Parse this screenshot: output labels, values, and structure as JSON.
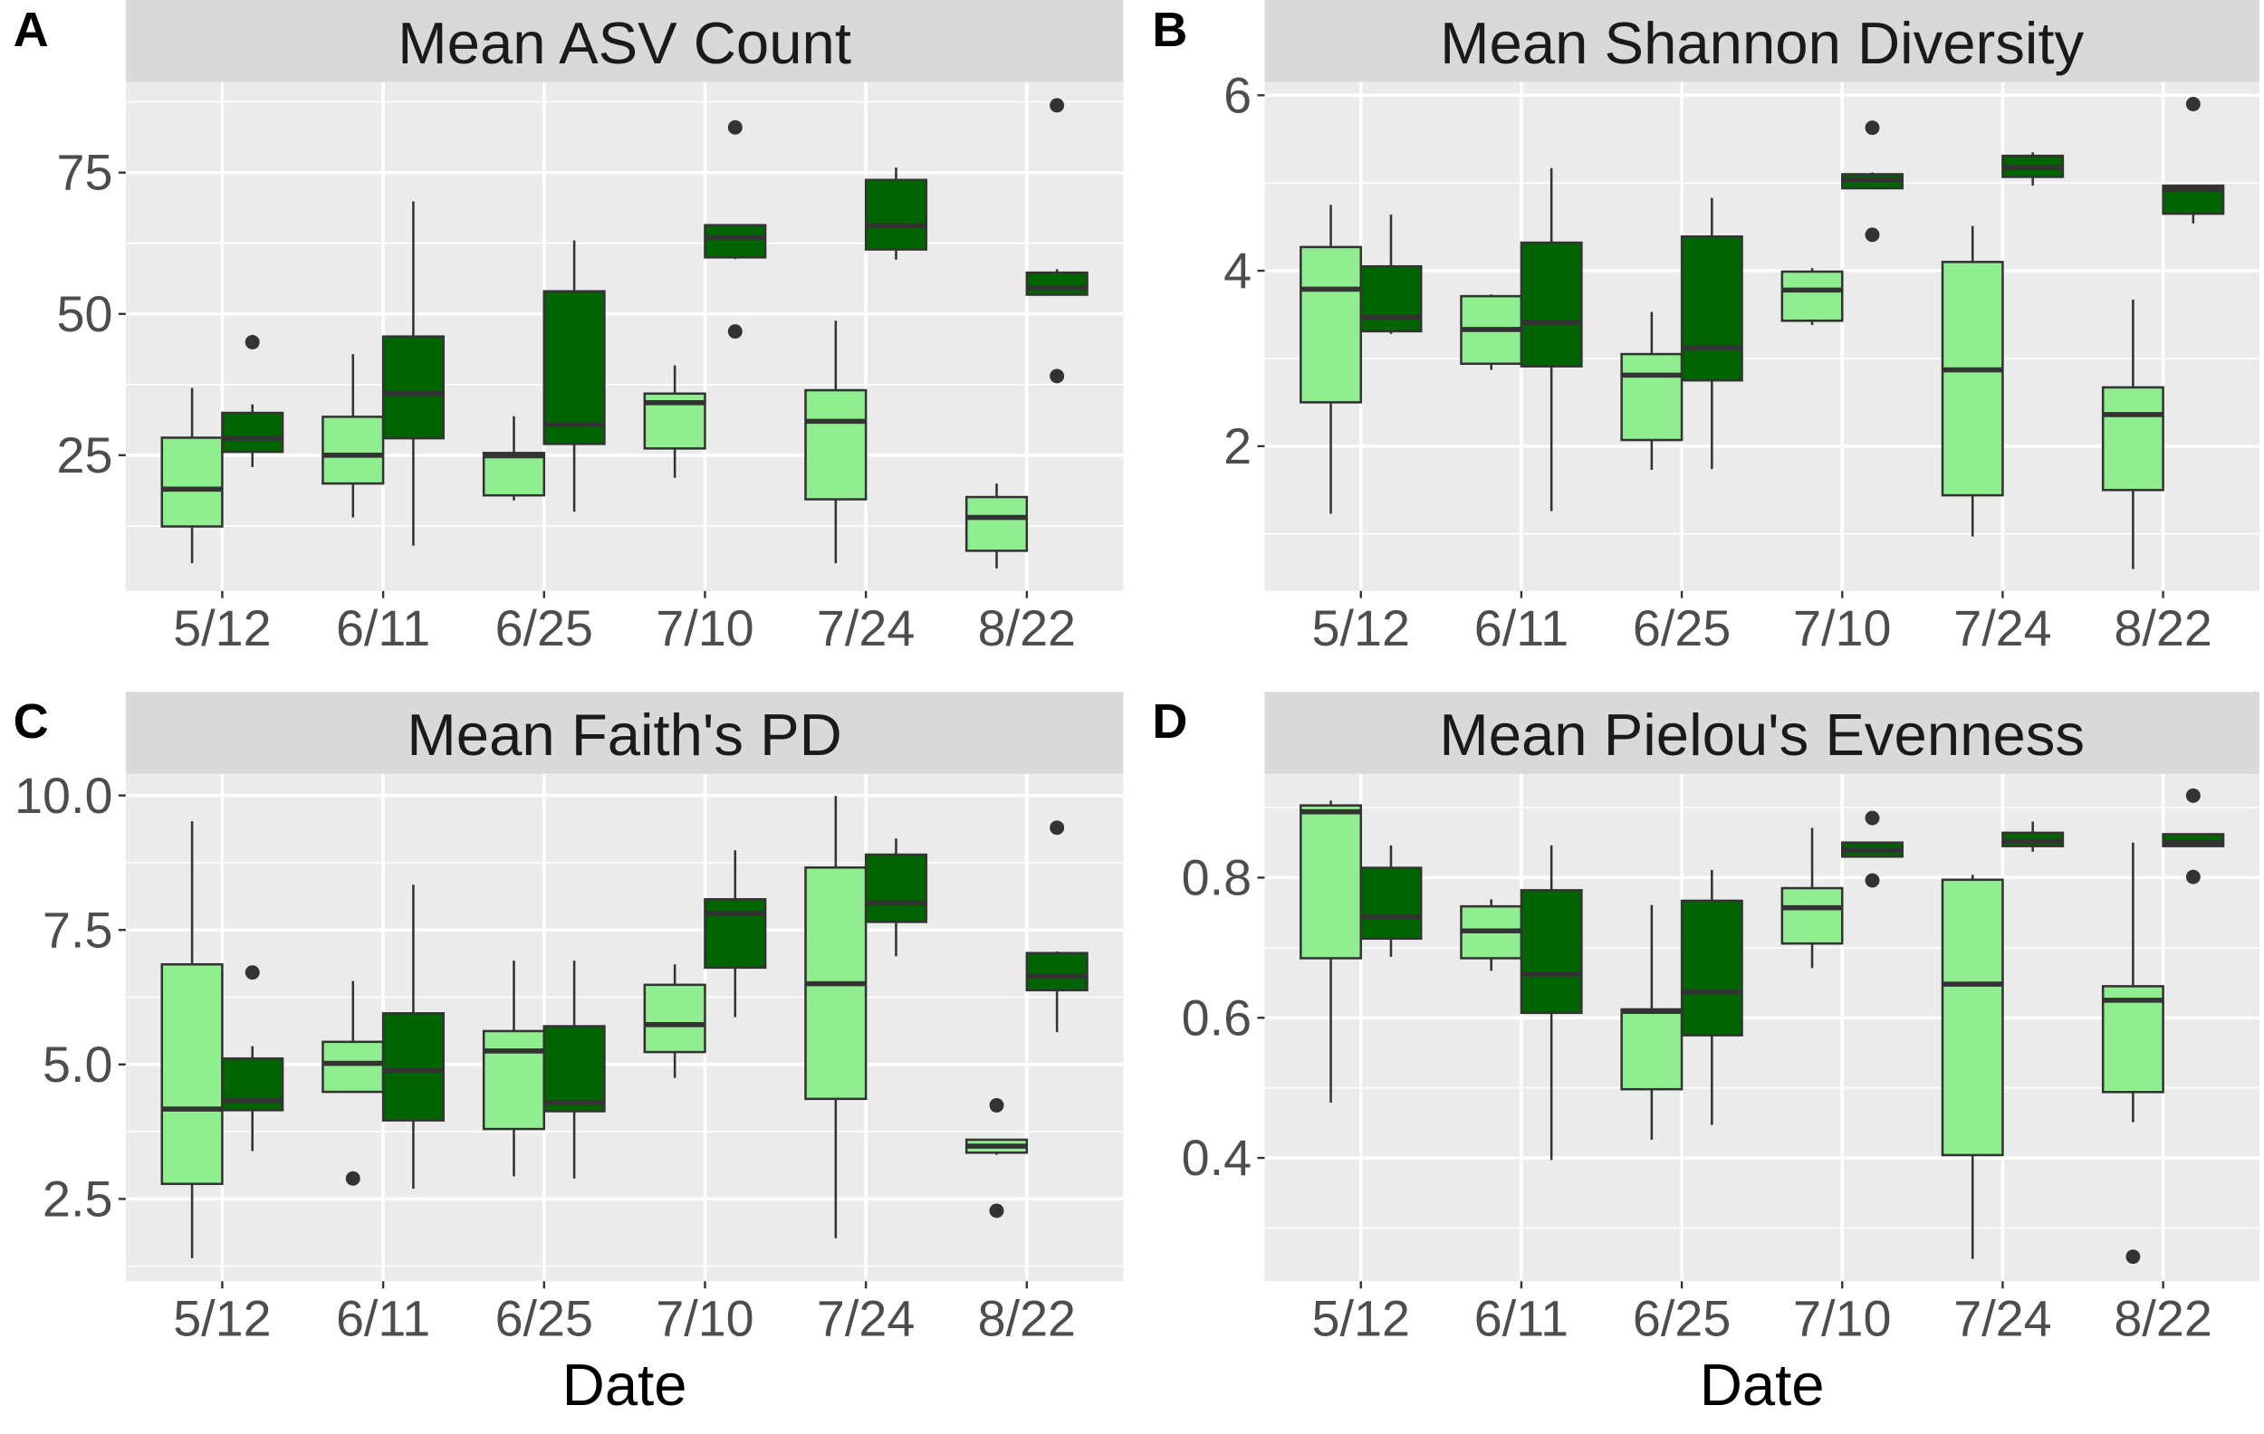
{
  "colors": {
    "light": "#90EE90",
    "dark": "#006400",
    "panel_bg": "#EBEBEB",
    "strip_bg": "#D9D9D9",
    "outline": "#333333"
  },
  "chart_data": [
    {
      "type": "box",
      "panel_letter": "A",
      "title": "Mean ASV Count",
      "xlabel": "",
      "categories": [
        "5/12",
        "6/11",
        "6/25",
        "7/10",
        "7/24",
        "8/22"
      ],
      "ylim": [
        1,
        91
      ],
      "yticks": [
        25,
        50,
        75
      ],
      "ytick_labels": [
        "25",
        "50",
        "75"
      ],
      "minor_ticks": [
        12.5,
        37.5,
        62.5,
        87.5
      ],
      "series": [
        {
          "fill": "light",
          "stats": [
            [
              5.9,
              12.4,
              19,
              28.1,
              36.9
            ],
            [
              14,
              20,
              25,
              31.8,
              42.9
            ],
            [
              17,
              17.9,
              24.9,
              25.4,
              31.9
            ],
            [
              21,
              26.2,
              34.3,
              35.9,
              40.9
            ],
            [
              5.9,
              17.2,
              31,
              36.5,
              48.8
            ],
            [
              5,
              8.1,
              14,
              17.6,
              20
            ]
          ],
          "outliers": [
            [],
            [],
            [],
            [],
            [],
            []
          ]
        },
        {
          "fill": "dark",
          "stats": [
            [
              22.9,
              25.6,
              28,
              32.5,
              34
            ],
            [
              9,
              28,
              35.9,
              46,
              69.9
            ],
            [
              15,
              27,
              30.4,
              54,
              63
            ],
            [
              59.7,
              60,
              63.5,
              65.7,
              65.7
            ],
            [
              59.6,
              61.4,
              65.6,
              73.7,
              75.9
            ],
            [
              53.4,
              53.4,
              54.6,
              57.3,
              57.9
            ]
          ],
          "outliers": [
            [
              45
            ],
            [],
            [],
            [
              83,
              46.9
            ],
            [],
            [
              86.9,
              39
            ]
          ]
        }
      ]
    },
    {
      "type": "box",
      "panel_letter": "B",
      "title": "Mean Shannon Diversity",
      "xlabel": "",
      "categories": [
        "5/12",
        "6/11",
        "6/25",
        "7/10",
        "7/24",
        "8/22"
      ],
      "ylim": [
        0.35,
        6.15
      ],
      "yticks": [
        2,
        4,
        6
      ],
      "ytick_labels": [
        "2",
        "4",
        "6"
      ],
      "minor_ticks": [
        1,
        3,
        5
      ],
      "series": [
        {
          "fill": "light",
          "stats": [
            [
              1.23,
              2.5,
              3.79,
              4.27,
              4.75
            ],
            [
              2.87,
              2.94,
              3.33,
              3.71,
              3.73
            ],
            [
              1.73,
              2.07,
              2.81,
              3.05,
              3.53
            ],
            [
              3.38,
              3.43,
              3.78,
              3.99,
              4.03
            ],
            [
              0.97,
              1.44,
              2.87,
              4.1,
              4.51
            ],
            [
              0.6,
              1.5,
              2.36,
              2.67,
              3.67
            ]
          ],
          "outliers": [
            [],
            [],
            [],
            [],
            [],
            []
          ]
        },
        {
          "fill": "dark",
          "stats": [
            [
              3.28,
              3.31,
              3.47,
              4.05,
              4.64
            ],
            [
              1.26,
              2.91,
              3.41,
              4.32,
              5.17
            ],
            [
              1.74,
              2.75,
              3.12,
              4.39,
              4.83
            ],
            [
              4.94,
              4.94,
              5.04,
              5.1,
              5.12
            ],
            [
              4.97,
              5.07,
              5.18,
              5.31,
              5.35
            ],
            [
              4.54,
              4.65,
              4.93,
              4.97,
              4.97
            ]
          ],
          "outliers": [
            [],
            [],
            [],
            [
              5.63,
              4.41
            ],
            [],
            [
              5.9
            ]
          ]
        }
      ]
    },
    {
      "type": "box",
      "panel_letter": "C",
      "title": "Mean Faith's PD",
      "xlabel": "Date",
      "categories": [
        "5/12",
        "6/11",
        "6/25",
        "7/10",
        "7/24",
        "8/22"
      ],
      "ylim": [
        0.97,
        10.4
      ],
      "yticks": [
        2.5,
        5.0,
        7.5,
        10.0
      ],
      "ytick_labels": [
        "2.5",
        "5.0",
        "7.5",
        "10.0"
      ],
      "minor_ticks": [
        1.25,
        3.75,
        6.25,
        8.75
      ],
      "series": [
        {
          "fill": "light",
          "stats": [
            [
              1.4,
              2.78,
              4.17,
              6.86,
              9.52
            ],
            [
              4.49,
              4.49,
              5.02,
              5.42,
              6.55
            ],
            [
              2.92,
              3.8,
              5.25,
              5.62,
              6.93
            ],
            [
              4.75,
              5.23,
              5.74,
              6.48,
              6.86
            ],
            [
              1.77,
              4.36,
              6.5,
              8.66,
              9.99
            ],
            [
              3.32,
              3.36,
              3.48,
              3.6,
              3.6
            ]
          ],
          "outliers": [
            [],
            [
              2.88
            ],
            [],
            [],
            [],
            [
              4.24,
              2.28
            ]
          ]
        },
        {
          "fill": "dark",
          "stats": [
            [
              3.39,
              4.15,
              4.33,
              5.11,
              5.34
            ],
            [
              2.69,
              3.96,
              4.89,
              5.95,
              8.34
            ],
            [
              2.88,
              4.13,
              4.29,
              5.71,
              6.93
            ],
            [
              5.88,
              6.8,
              7.81,
              8.07,
              8.98
            ],
            [
              7.01,
              7.65,
              8.0,
              8.9,
              9.2
            ],
            [
              5.6,
              6.38,
              6.64,
              7.07,
              7.1
            ]
          ],
          "outliers": [
            [
              6.71
            ],
            [],
            [],
            [],
            [],
            [
              9.4
            ]
          ]
        }
      ]
    },
    {
      "type": "box",
      "panel_letter": "D",
      "title": "Mean Pielou's Evenness",
      "xlabel": "Date",
      "categories": [
        "5/12",
        "6/11",
        "6/25",
        "7/10",
        "7/24",
        "8/22"
      ],
      "ylim": [
        0.224,
        0.948
      ],
      "yticks": [
        0.4,
        0.6,
        0.8
      ],
      "ytick_labels": [
        "0.4",
        "0.6",
        "0.8"
      ],
      "minor_ticks": [
        0.3,
        0.5,
        0.7,
        0.9
      ],
      "series": [
        {
          "fill": "light",
          "stats": [
            [
              0.479,
              0.685,
              0.894,
              0.903,
              0.91
            ],
            [
              0.667,
              0.685,
              0.724,
              0.759,
              0.769
            ],
            [
              0.426,
              0.498,
              0.609,
              0.612,
              0.761
            ],
            [
              0.671,
              0.706,
              0.757,
              0.785,
              0.871
            ],
            [
              0.256,
              0.404,
              0.648,
              0.797,
              0.804
            ],
            [
              0.451,
              0.494,
              0.625,
              0.645,
              0.85
            ]
          ],
          "outliers": [
            [],
            [],
            [],
            [],
            [],
            [
              0.259
            ]
          ]
        },
        {
          "fill": "dark",
          "stats": [
            [
              0.687,
              0.713,
              0.744,
              0.814,
              0.846
            ],
            [
              0.397,
              0.607,
              0.662,
              0.782,
              0.846
            ],
            [
              0.447,
              0.575,
              0.637,
              0.767,
              0.811
            ],
            [
              0.83,
              0.83,
              0.839,
              0.85,
              0.85
            ],
            [
              0.837,
              0.845,
              0.852,
              0.864,
              0.88
            ],
            [
              0.845,
              0.845,
              0.85,
              0.862,
              0.862
            ]
          ],
          "outliers": [
            [],
            [],
            [],
            [
              0.885,
              0.796
            ],
            [],
            [
              0.917,
              0.801
            ]
          ]
        }
      ]
    }
  ]
}
